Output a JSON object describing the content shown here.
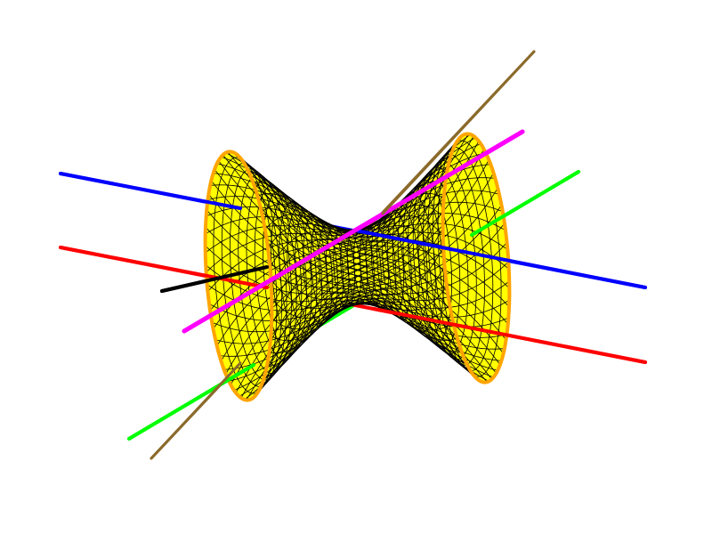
{
  "surface": {
    "type": "one-sheet-hyperboloid",
    "fill_color": "#FFFF00",
    "mesh_color": "#000000",
    "rim_color": "#FFA500"
  },
  "lines": [
    {
      "name": "blue-line",
      "color": "#0000FF"
    },
    {
      "name": "red-line",
      "color": "#FF0000"
    },
    {
      "name": "magenta-line",
      "color": "#FF00FF"
    },
    {
      "name": "green-line",
      "color": "#00FF00"
    },
    {
      "name": "brown-line",
      "color": "#8B6A2B"
    },
    {
      "name": "black-line",
      "color": "#000000"
    }
  ]
}
